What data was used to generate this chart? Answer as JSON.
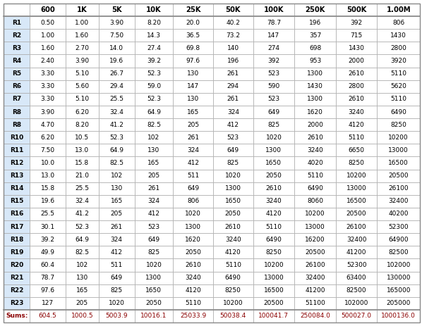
{
  "columns": [
    "",
    "600",
    "1K",
    "5K",
    "10K",
    "25K",
    "50K",
    "100K",
    "250K",
    "500K",
    "1.00M"
  ],
  "rows": [
    [
      "R1",
      "0.50",
      "1.00",
      "3.90",
      "8.20",
      "20.0",
      "40.2",
      "78.7",
      "196",
      "392",
      "806"
    ],
    [
      "R2",
      "1.00",
      "1.60",
      "7.50",
      "14.3",
      "36.5",
      "73.2",
      "147",
      "357",
      "715",
      "1430"
    ],
    [
      "R3",
      "1.60",
      "2.70",
      "14.0",
      "27.4",
      "69.8",
      "140",
      "274",
      "698",
      "1430",
      "2800"
    ],
    [
      "R4",
      "2.40",
      "3.90",
      "19.6",
      "39.2",
      "97.6",
      "196",
      "392",
      "953",
      "2000",
      "3920"
    ],
    [
      "R5",
      "3.30",
      "5.10",
      "26.7",
      "52.3",
      "130",
      "261",
      "523",
      "1300",
      "2610",
      "5110"
    ],
    [
      "R6",
      "3.30",
      "5.60",
      "29.4",
      "59.0",
      "147",
      "294",
      "590",
      "1430",
      "2800",
      "5620"
    ],
    [
      "R7",
      "3.30",
      "5.10",
      "25.5",
      "52.3",
      "130",
      "261",
      "523",
      "1300",
      "2610",
      "5110"
    ],
    [
      "R8",
      "3.90",
      "6.20",
      "32.4",
      "64.9",
      "165",
      "324",
      "649",
      "1620",
      "3240",
      "6490"
    ],
    [
      "R8",
      "4.70",
      "8.20",
      "41.2",
      "82.5",
      "205",
      "412",
      "825",
      "2000",
      "4120",
      "8250"
    ],
    [
      "R10",
      "6.20",
      "10.5",
      "52.3",
      "102",
      "261",
      "523",
      "1020",
      "2610",
      "5110",
      "10200"
    ],
    [
      "R11",
      "7.50",
      "13.0",
      "64.9",
      "130",
      "324",
      "649",
      "1300",
      "3240",
      "6650",
      "13000"
    ],
    [
      "R12",
      "10.0",
      "15.8",
      "82.5",
      "165",
      "412",
      "825",
      "1650",
      "4020",
      "8250",
      "16500"
    ],
    [
      "R13",
      "13.0",
      "21.0",
      "102",
      "205",
      "511",
      "1020",
      "2050",
      "5110",
      "10200",
      "20500"
    ],
    [
      "R14",
      "15.8",
      "25.5",
      "130",
      "261",
      "649",
      "1300",
      "2610",
      "6490",
      "13000",
      "26100"
    ],
    [
      "R15",
      "19.6",
      "32.4",
      "165",
      "324",
      "806",
      "1650",
      "3240",
      "8060",
      "16500",
      "32400"
    ],
    [
      "R16",
      "25.5",
      "41.2",
      "205",
      "412",
      "1020",
      "2050",
      "4120",
      "10200",
      "20500",
      "40200"
    ],
    [
      "R17",
      "30.1",
      "52.3",
      "261",
      "523",
      "1300",
      "2610",
      "5110",
      "13000",
      "26100",
      "52300"
    ],
    [
      "R18",
      "39.2",
      "64.9",
      "324",
      "649",
      "1620",
      "3240",
      "6490",
      "16200",
      "32400",
      "64900"
    ],
    [
      "R19",
      "49.9",
      "82.5",
      "412",
      "825",
      "2050",
      "4120",
      "8250",
      "20500",
      "41200",
      "82500"
    ],
    [
      "R20",
      "60.4",
      "102",
      "511",
      "1020",
      "2610",
      "5110",
      "10200",
      "26100",
      "52300",
      "102000"
    ],
    [
      "R21",
      "78.7",
      "130",
      "649",
      "1300",
      "3240",
      "6490",
      "13000",
      "32400",
      "63400",
      "130000"
    ],
    [
      "R22",
      "97.6",
      "165",
      "825",
      "1650",
      "4120",
      "8250",
      "16500",
      "41200",
      "82500",
      "165000"
    ],
    [
      "R23",
      "127",
      "205",
      "1020",
      "2050",
      "5110",
      "10200",
      "20500",
      "51100",
      "102000",
      "205000"
    ]
  ],
  "sums_label": "Sums:",
  "sums": [
    "604.5",
    "1000.5",
    "5003.9",
    "10016.1",
    "25033.9",
    "50038.4",
    "100041.7",
    "250084.0",
    "500027.0",
    "1000136.0"
  ],
  "sums_color": "#8B0000",
  "body_text_color": "#000000",
  "grid_color": "#AAAAAA",
  "bg_color": "#FFFFFF",
  "row_label_bg": "#D8E8F8",
  "header_bg": "#FFFFFF",
  "font_size": 6.5,
  "header_font_size": 7.2,
  "sums_font_size": 6.5
}
